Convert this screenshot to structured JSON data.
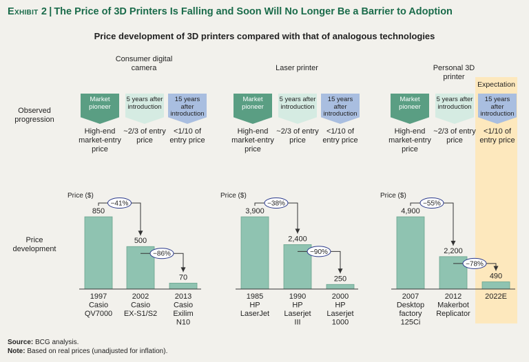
{
  "exhibit": {
    "label": "Exhibit 2",
    "separator": "|",
    "title": "The Price of 3D Printers Is Falling and Soon Will No Longer Be a Barrier to Adoption"
  },
  "subtitle": "Price development of 3D printers compared with that of analogous technologies",
  "row_labels": {
    "observed": "Observed progression",
    "price": "Price development"
  },
  "expectation_label": "Expectation",
  "tags": {
    "pioneer": "Market pioneer",
    "five": "5 years after introduction",
    "fifteen": "15 years after introduction"
  },
  "tag_texts": {
    "pioneer": "High-end market-entry price",
    "five": "~2/3 of entry price",
    "fifteen": "<1/10 of entry price"
  },
  "colors": {
    "bar": "#8fc3b1",
    "bar_edge": "#6aa58f",
    "pioneer": "#5a9e83",
    "five": "#d5ebe2",
    "fifteen": "#a9bee0",
    "expectation": "#fde8bd",
    "title": "#1a6b4a"
  },
  "chart_data": [
    {
      "type": "bar",
      "title": "Consumer digital camera",
      "ylabel": "Price ($)",
      "categories": [
        "1997 Casio QV7000",
        "2002 Casio EX-S1/S2",
        "2013 Casio Exilim N10"
      ],
      "values": [
        850,
        500,
        70
      ],
      "value_labels": [
        "850",
        "500",
        "70"
      ],
      "changes": [
        "−41%",
        "−86%"
      ]
    },
    {
      "type": "bar",
      "title": "Laser printer",
      "ylabel": "Price ($)",
      "categories": [
        "1985 HP LaserJet",
        "1990 HP Laserjet III",
        "2000 HP Laserjet 1000"
      ],
      "values": [
        3900,
        2400,
        250
      ],
      "value_labels": [
        "3,900",
        "2,400",
        "250"
      ],
      "changes": [
        "−38%",
        "−90%"
      ]
    },
    {
      "type": "bar",
      "title": "Personal 3D printer",
      "ylabel": "Price ($)",
      "categories": [
        "2007 Desktop factory 125Ci",
        "2012 Makerbot Replicator",
        "2022E"
      ],
      "values": [
        4900,
        2200,
        490
      ],
      "value_labels": [
        "4,900",
        "2,200",
        "490"
      ],
      "changes": [
        "−55%",
        "−78%"
      ]
    }
  ],
  "footer": {
    "source_label": "Source:",
    "source_text": "BCG analysis.",
    "note_label": "Note:",
    "note_text": "Based on real prices (unadjusted for inflation)."
  }
}
